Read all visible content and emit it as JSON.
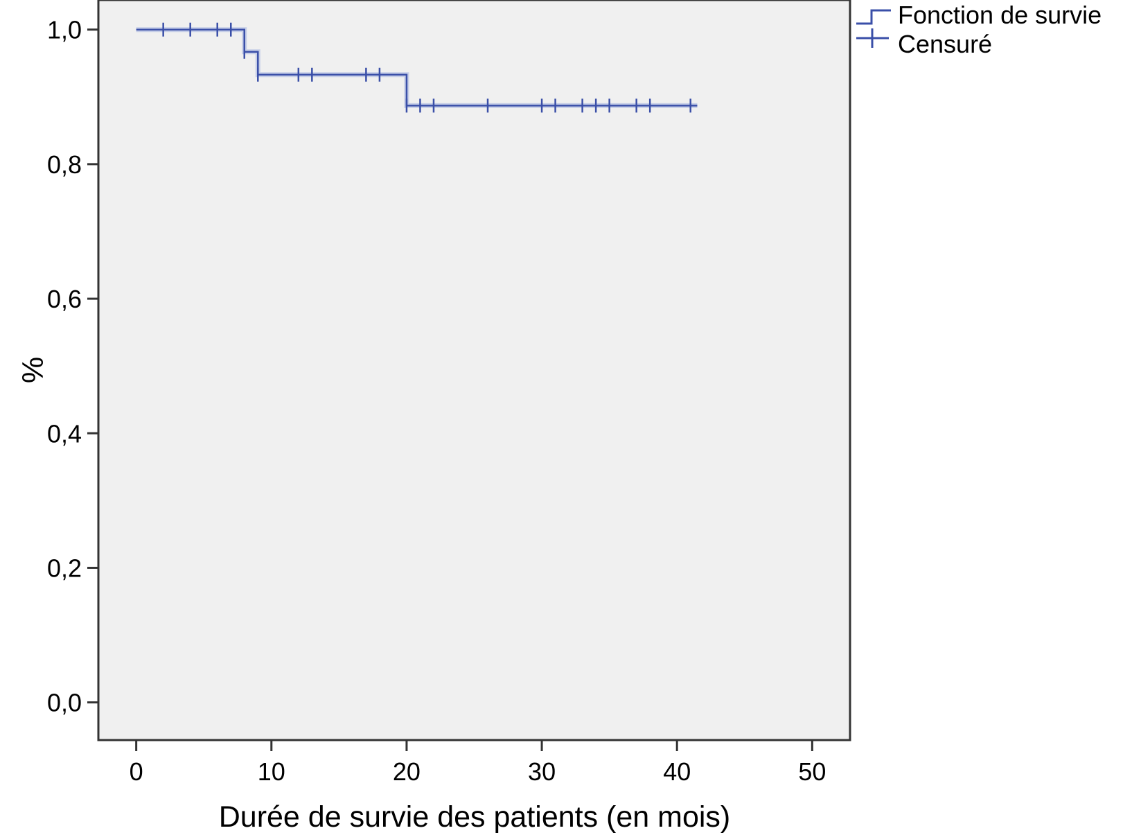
{
  "chart_data": {
    "type": "line",
    "title": "",
    "xlabel": "Durée de survie des patients (en mois)",
    "ylabel": "%",
    "xlim": [
      -2.8,
      52.8
    ],
    "ylim": [
      -0.056,
      1.044
    ],
    "x_ticks": [
      0,
      10,
      20,
      30,
      40,
      50
    ],
    "x_tick_labels": [
      "0",
      "10",
      "20",
      "30",
      "40",
      "50"
    ],
    "y_ticks": [
      0.0,
      0.2,
      0.4,
      0.6,
      0.8,
      1.0
    ],
    "y_tick_labels": [
      "0,0",
      "0,2",
      "0,4",
      "0,6",
      "0,8",
      "1,0"
    ],
    "grid": false,
    "background_color": "#f0f0f0",
    "legend": {
      "position": "top-right",
      "entries": [
        {
          "label": "Fonction de survie",
          "symbol": "step-line-icon"
        },
        {
          "label": "Censuré",
          "symbol": "cross-icon"
        }
      ]
    },
    "series": [
      {
        "name": "Fonction de survie",
        "style": "step",
        "color": "#3a4fa8",
        "x": [
          0,
          8,
          9,
          20,
          41.5
        ],
        "y": [
          1.0,
          0.967,
          0.933,
          0.887,
          0.887
        ]
      },
      {
        "name": "Censuré",
        "style": "censor-marks",
        "color": "#3a4fa8",
        "x": [
          2,
          4,
          6,
          7,
          8,
          9,
          12,
          13,
          17,
          18,
          20,
          21,
          22,
          26,
          30,
          31,
          33,
          34,
          35,
          37,
          38,
          41
        ],
        "y": [
          1.0,
          1.0,
          1.0,
          1.0,
          0.967,
          0.933,
          0.933,
          0.933,
          0.933,
          0.933,
          0.887,
          0.887,
          0.887,
          0.887,
          0.887,
          0.887,
          0.887,
          0.887,
          0.887,
          0.887,
          0.887,
          0.887
        ]
      }
    ]
  }
}
